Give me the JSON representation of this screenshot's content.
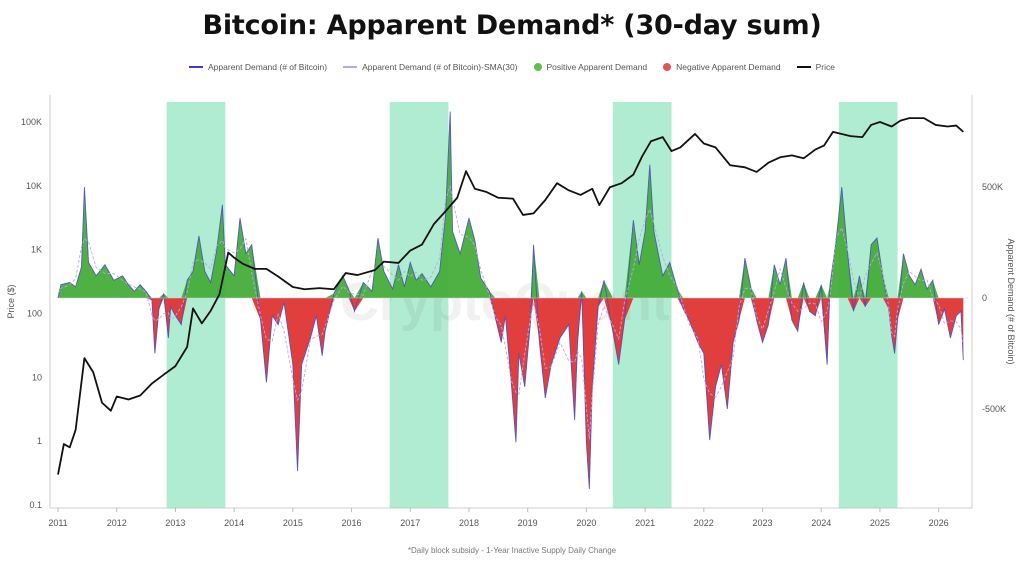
{
  "chart_data": {
    "type": "line",
    "title": "Bitcoin: Apparent Demand* (30-day sum)",
    "footnote": "*Daily block subsidy - 1-Year Inactive Supply Daily Change",
    "watermark": "CryptoQuant",
    "ylabel_left": "Price ($)",
    "ylabel_right": "Apparent Demand (# of Bitcoin)",
    "y_left_scale": "log",
    "y_left_ticks": [
      {
        "value": 100000,
        "label": "100K"
      },
      {
        "value": 10000,
        "label": "10K"
      },
      {
        "value": 1000,
        "label": "1K"
      },
      {
        "value": 100,
        "label": "100"
      },
      {
        "value": 10,
        "label": "10"
      },
      {
        "value": 1,
        "label": "1"
      },
      {
        "value": 0.1,
        "label": "0.1"
      }
    ],
    "ylim_left": [
      0.1,
      100000
    ],
    "y_right_ticks": [
      {
        "value": 500000,
        "label": "500K"
      },
      {
        "value": 0,
        "label": "0"
      },
      {
        "value": -500000,
        "label": "-500K"
      }
    ],
    "x_ticks": [
      "2011",
      "2012",
      "2013",
      "2014",
      "2015",
      "2016",
      "2017",
      "2018",
      "2019",
      "2020",
      "2021",
      "2022",
      "2023",
      "2024",
      "2025",
      "2026"
    ],
    "xlim": [
      2011.0,
      2026.5
    ],
    "legend_position": "top",
    "legend": [
      {
        "label": "Apparent Demand (# of Bitcoin)",
        "color": "#3b3bcc",
        "kind": "line"
      },
      {
        "label": "Apparent Demand (# of Bitcoin)-SMA(30)",
        "color": "#b9a7e6",
        "kind": "line"
      },
      {
        "label": "Positive Apparent Demand",
        "color": "#5fbf4f",
        "kind": "dot"
      },
      {
        "label": "Negative Apparent Demand",
        "color": "#e35454",
        "kind": "dot"
      },
      {
        "label": "Price",
        "color": "#111111",
        "kind": "line"
      }
    ],
    "colors": {
      "positive": "#46ad3a",
      "negative": "#df3434",
      "demand_line": "#4d4dbf",
      "sma_line": "#b9a7e6",
      "price": "#111111",
      "highlight": "#7fe0b4"
    },
    "highlight_periods": [
      [
        2012.85,
        2013.85
      ],
      [
        2016.65,
        2017.65
      ],
      [
        2020.45,
        2021.45
      ],
      [
        2024.3,
        2025.3
      ]
    ],
    "price_series": {
      "name": "Price",
      "points": [
        [
          2011.0,
          0.3
        ],
        [
          2011.1,
          0.9
        ],
        [
          2011.2,
          0.8
        ],
        [
          2011.3,
          1.5
        ],
        [
          2011.45,
          20
        ],
        [
          2011.6,
          12
        ],
        [
          2011.75,
          4
        ],
        [
          2011.9,
          3
        ],
        [
          2012.0,
          5
        ],
        [
          2012.2,
          4.5
        ],
        [
          2012.4,
          5.2
        ],
        [
          2012.6,
          8
        ],
        [
          2012.8,
          11
        ],
        [
          2013.0,
          15
        ],
        [
          2013.2,
          30
        ],
        [
          2013.3,
          120
        ],
        [
          2013.45,
          70
        ],
        [
          2013.6,
          110
        ],
        [
          2013.75,
          200
        ],
        [
          2013.9,
          900
        ],
        [
          2014.0,
          750
        ],
        [
          2014.15,
          600
        ],
        [
          2014.35,
          500
        ],
        [
          2014.55,
          500
        ],
        [
          2014.75,
          380
        ],
        [
          2015.0,
          260
        ],
        [
          2015.2,
          240
        ],
        [
          2015.45,
          250
        ],
        [
          2015.7,
          240
        ],
        [
          2015.9,
          430
        ],
        [
          2016.1,
          400
        ],
        [
          2016.4,
          480
        ],
        [
          2016.55,
          650
        ],
        [
          2016.8,
          620
        ],
        [
          2017.0,
          970
        ],
        [
          2017.2,
          1200
        ],
        [
          2017.4,
          2500
        ],
        [
          2017.6,
          4000
        ],
        [
          2017.8,
          6500
        ],
        [
          2017.95,
          17000
        ],
        [
          2018.1,
          9000
        ],
        [
          2018.3,
          8000
        ],
        [
          2018.5,
          6500
        ],
        [
          2018.75,
          6300
        ],
        [
          2018.92,
          3500
        ],
        [
          2019.1,
          3700
        ],
        [
          2019.3,
          6000
        ],
        [
          2019.5,
          11000
        ],
        [
          2019.7,
          8500
        ],
        [
          2019.9,
          7200
        ],
        [
          2020.1,
          9000
        ],
        [
          2020.22,
          5000
        ],
        [
          2020.4,
          9500
        ],
        [
          2020.6,
          11000
        ],
        [
          2020.8,
          15000
        ],
        [
          2020.95,
          29000
        ],
        [
          2021.1,
          50000
        ],
        [
          2021.3,
          58000
        ],
        [
          2021.45,
          35000
        ],
        [
          2021.6,
          40000
        ],
        [
          2021.85,
          65000
        ],
        [
          2022.0,
          46000
        ],
        [
          2022.2,
          40000
        ],
        [
          2022.45,
          21000
        ],
        [
          2022.7,
          19500
        ],
        [
          2022.9,
          16500
        ],
        [
          2023.1,
          23000
        ],
        [
          2023.3,
          28000
        ],
        [
          2023.5,
          30000
        ],
        [
          2023.7,
          27000
        ],
        [
          2023.9,
          37000
        ],
        [
          2024.05,
          43000
        ],
        [
          2024.2,
          70000
        ],
        [
          2024.5,
          60000
        ],
        [
          2024.7,
          58000
        ],
        [
          2024.85,
          90000
        ],
        [
          2025.0,
          100000
        ],
        [
          2025.2,
          85000
        ],
        [
          2025.35,
          105000
        ],
        [
          2025.5,
          115000
        ],
        [
          2025.75,
          115000
        ],
        [
          2025.95,
          90000
        ],
        [
          2026.15,
          85000
        ],
        [
          2026.3,
          88000
        ],
        [
          2026.42,
          70000
        ]
      ]
    },
    "apparent_demand_series": {
      "name": "Apparent Demand (# of Bitcoin)",
      "points": [
        [
          2011.0,
          0
        ],
        [
          2011.05,
          60000
        ],
        [
          2011.2,
          70000
        ],
        [
          2011.3,
          50000
        ],
        [
          2011.4,
          140000
        ],
        [
          2011.45,
          500000
        ],
        [
          2011.52,
          160000
        ],
        [
          2011.65,
          100000
        ],
        [
          2011.8,
          150000
        ],
        [
          2011.95,
          80000
        ],
        [
          2012.1,
          100000
        ],
        [
          2012.2,
          60000
        ],
        [
          2012.3,
          30000
        ],
        [
          2012.4,
          60000
        ],
        [
          2012.5,
          30000
        ],
        [
          2012.6,
          -10000
        ],
        [
          2012.65,
          -250000
        ],
        [
          2012.72,
          -50000
        ],
        [
          2012.8,
          20000
        ],
        [
          2012.88,
          -180000
        ],
        [
          2012.92,
          -40000
        ],
        [
          2013.0,
          -80000
        ],
        [
          2013.1,
          -120000
        ],
        [
          2013.2,
          80000
        ],
        [
          2013.3,
          120000
        ],
        [
          2013.4,
          280000
        ],
        [
          2013.5,
          120000
        ],
        [
          2013.6,
          70000
        ],
        [
          2013.7,
          210000
        ],
        [
          2013.8,
          420000
        ],
        [
          2013.85,
          150000
        ],
        [
          2014.0,
          100000
        ],
        [
          2014.1,
          360000
        ],
        [
          2014.2,
          200000
        ],
        [
          2014.3,
          240000
        ],
        [
          2014.45,
          -100000
        ],
        [
          2014.55,
          -380000
        ],
        [
          2014.65,
          -80000
        ],
        [
          2014.75,
          -120000
        ],
        [
          2014.85,
          -20000
        ],
        [
          2015.0,
          -300000
        ],
        [
          2015.08,
          -780000
        ],
        [
          2015.15,
          -300000
        ],
        [
          2015.3,
          -180000
        ],
        [
          2015.4,
          -80000
        ],
        [
          2015.5,
          -260000
        ],
        [
          2015.55,
          -150000
        ],
        [
          2015.7,
          20000
        ],
        [
          2015.85,
          100000
        ],
        [
          2015.95,
          40000
        ],
        [
          2016.05,
          -60000
        ],
        [
          2016.2,
          70000
        ],
        [
          2016.35,
          30000
        ],
        [
          2016.45,
          270000
        ],
        [
          2016.55,
          120000
        ],
        [
          2016.7,
          40000
        ],
        [
          2016.8,
          150000
        ],
        [
          2016.9,
          50000
        ],
        [
          2017.0,
          160000
        ],
        [
          2017.1,
          80000
        ],
        [
          2017.2,
          110000
        ],
        [
          2017.35,
          50000
        ],
        [
          2017.5,
          120000
        ],
        [
          2017.6,
          370000
        ],
        [
          2017.68,
          840000
        ],
        [
          2017.72,
          300000
        ],
        [
          2017.85,
          200000
        ],
        [
          2018.0,
          360000
        ],
        [
          2018.1,
          260000
        ],
        [
          2018.2,
          90000
        ],
        [
          2018.35,
          30000
        ],
        [
          2018.45,
          -90000
        ],
        [
          2018.55,
          -200000
        ],
        [
          2018.62,
          -80000
        ],
        [
          2018.72,
          -380000
        ],
        [
          2018.8,
          -650000
        ],
        [
          2018.85,
          -250000
        ],
        [
          2018.95,
          -400000
        ],
        [
          2019.05,
          -100000
        ],
        [
          2019.1,
          240000
        ],
        [
          2019.2,
          -200000
        ],
        [
          2019.3,
          -450000
        ],
        [
          2019.4,
          -300000
        ],
        [
          2019.55,
          -180000
        ],
        [
          2019.7,
          -120000
        ],
        [
          2019.8,
          -550000
        ],
        [
          2019.85,
          -200000
        ],
        [
          2019.92,
          30000
        ],
        [
          2020.0,
          -650000
        ],
        [
          2020.05,
          -860000
        ],
        [
          2020.1,
          -400000
        ],
        [
          2020.2,
          -40000
        ],
        [
          2020.3,
          80000
        ],
        [
          2020.45,
          -150000
        ],
        [
          2020.55,
          -300000
        ],
        [
          2020.65,
          -100000
        ],
        [
          2020.8,
          350000
        ],
        [
          2020.9,
          150000
        ],
        [
          2021.0,
          300000
        ],
        [
          2021.08,
          600000
        ],
        [
          2021.15,
          300000
        ],
        [
          2021.3,
          100000
        ],
        [
          2021.42,
          160000
        ],
        [
          2021.55,
          40000
        ],
        [
          2021.65,
          -50000
        ],
        [
          2021.75,
          -100000
        ],
        [
          2021.9,
          -200000
        ],
        [
          2022.0,
          -250000
        ],
        [
          2022.1,
          -640000
        ],
        [
          2022.2,
          -400000
        ],
        [
          2022.3,
          -300000
        ],
        [
          2022.4,
          -500000
        ],
        [
          2022.5,
          -200000
        ],
        [
          2022.6,
          -100000
        ],
        [
          2022.7,
          180000
        ],
        [
          2022.8,
          50000
        ],
        [
          2022.9,
          -100000
        ],
        [
          2023.0,
          -200000
        ],
        [
          2023.1,
          -120000
        ],
        [
          2023.2,
          150000
        ],
        [
          2023.3,
          60000
        ],
        [
          2023.4,
          180000
        ],
        [
          2023.5,
          -100000
        ],
        [
          2023.6,
          -150000
        ],
        [
          2023.7,
          70000
        ],
        [
          2023.8,
          -60000
        ],
        [
          2023.9,
          -80000
        ],
        [
          2024.0,
          60000
        ],
        [
          2024.1,
          -300000
        ],
        [
          2024.15,
          60000
        ],
        [
          2024.25,
          250000
        ],
        [
          2024.35,
          500000
        ],
        [
          2024.45,
          200000
        ],
        [
          2024.55,
          -60000
        ],
        [
          2024.65,
          100000
        ],
        [
          2024.75,
          -40000
        ],
        [
          2024.85,
          240000
        ],
        [
          2024.95,
          270000
        ],
        [
          2025.05,
          100000
        ],
        [
          2025.15,
          -50000
        ],
        [
          2025.2,
          -170000
        ],
        [
          2025.25,
          -250000
        ],
        [
          2025.3,
          -100000
        ],
        [
          2025.4,
          200000
        ],
        [
          2025.5,
          100000
        ],
        [
          2025.6,
          60000
        ],
        [
          2025.7,
          130000
        ],
        [
          2025.8,
          40000
        ],
        [
          2025.9,
          80000
        ],
        [
          2026.0,
          -120000
        ],
        [
          2026.1,
          -50000
        ],
        [
          2026.2,
          -180000
        ],
        [
          2026.3,
          -80000
        ],
        [
          2026.38,
          -60000
        ],
        [
          2026.42,
          -280000
        ]
      ]
    }
  }
}
